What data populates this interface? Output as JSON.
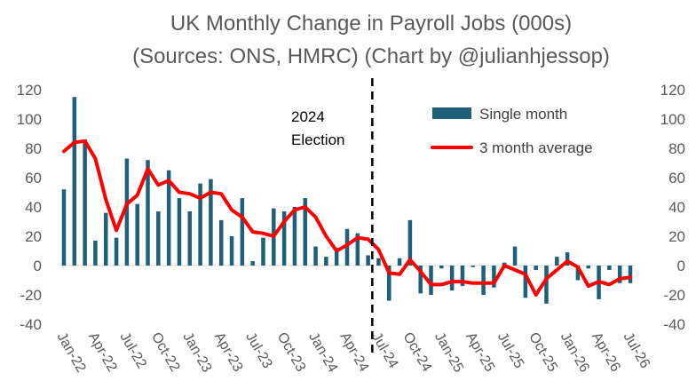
{
  "chart_data": {
    "type": "bar",
    "title": "UK Monthly Change in Payroll Jobs (000s)",
    "subtitle": "(Sources: ONS, HMRC) (Chart by @julianhjessop)",
    "xlabel": "",
    "ylabel": "",
    "ylim": [
      -40,
      120
    ],
    "y_ticks": [
      -40,
      -20,
      0,
      20,
      40,
      60,
      80,
      100,
      120
    ],
    "secondary_y_ticks": [
      -40,
      -20,
      0,
      20,
      40,
      60,
      80,
      100,
      120
    ],
    "categories": [
      "Jan-22",
      "Feb-22",
      "Mar-22",
      "Apr-22",
      "May-22",
      "Jun-22",
      "Jul-22",
      "Aug-22",
      "Sep-22",
      "Oct-22",
      "Nov-22",
      "Dec-22",
      "Jan-23",
      "Feb-23",
      "Mar-23",
      "Apr-23",
      "May-23",
      "Jun-23",
      "Jul-23",
      "Aug-23",
      "Sep-23",
      "Oct-23",
      "Nov-23",
      "Dec-23",
      "Jan-24",
      "Feb-24",
      "Mar-24",
      "Apr-24",
      "May-24",
      "Jun-24",
      "Jul-24",
      "Aug-24",
      "Sep-24",
      "Oct-24",
      "Nov-24",
      "Dec-24",
      "Jan-25",
      "Feb-25",
      "Mar-25",
      "Apr-25",
      "May-25",
      "Jun-25",
      "Jul-25",
      "Aug-25",
      "Sep-25",
      "Oct-25",
      "Nov-25",
      "Dec-25",
      "Jan-26",
      "Feb-26",
      "Mar-26",
      "Apr-26",
      "May-26",
      "Jun-26",
      "Jul-26"
    ],
    "x_tick_labels": [
      "Jan-22",
      "Apr-22",
      "Jul-22",
      "Oct-22",
      "Jan-23",
      "Apr-23",
      "Jul-23",
      "Oct-23",
      "Jan-24",
      "Apr-24",
      "Jul-24",
      "Oct-24",
      "Jan-25",
      "Apr-25",
      "Jul-25",
      "Oct-25",
      "Jan-26",
      "Apr-26",
      "Jul-26"
    ],
    "series": [
      {
        "name": "Single month",
        "type": "bar",
        "color": "#1f5f7a",
        "values": [
          52,
          115,
          86,
          17,
          36,
          19,
          73,
          42,
          72,
          37,
          65,
          46,
          37,
          56,
          59,
          31,
          20,
          46,
          3,
          19,
          39,
          37,
          40,
          46,
          13,
          6,
          12,
          25,
          22,
          7,
          5,
          -24,
          5,
          31,
          -19,
          -20,
          -2,
          -17,
          -14,
          -1,
          -20,
          -15,
          2,
          13,
          -22,
          -3,
          -26,
          6,
          9,
          -10,
          -2,
          -23,
          -3,
          -12,
          -12
        ]
      },
      {
        "name": "3 month average",
        "type": "line",
        "color": "#ff0000",
        "values": [
          78,
          84,
          85,
          73,
          45,
          24,
          42,
          48,
          66,
          55,
          58,
          50,
          49,
          46,
          50,
          49,
          38,
          33,
          23,
          22,
          20,
          30,
          38,
          40,
          33,
          20,
          10,
          14,
          19,
          18,
          11,
          -5,
          -6,
          4,
          -4,
          -13,
          -13,
          -11,
          -11,
          -12,
          -12,
          -12,
          0,
          -3,
          -6,
          -20,
          -9,
          -3,
          3,
          -1,
          -14,
          -11,
          -13,
          -9,
          -8
        ]
      }
    ],
    "annotations": [
      {
        "text_lines": [
          "2024",
          "Election"
        ],
        "marker": "vertical-dashed-line",
        "at": "Jul-24 (4 July 2024)",
        "color": "#000000"
      }
    ],
    "legend": {
      "placement": "top-right"
    },
    "grid": false
  }
}
